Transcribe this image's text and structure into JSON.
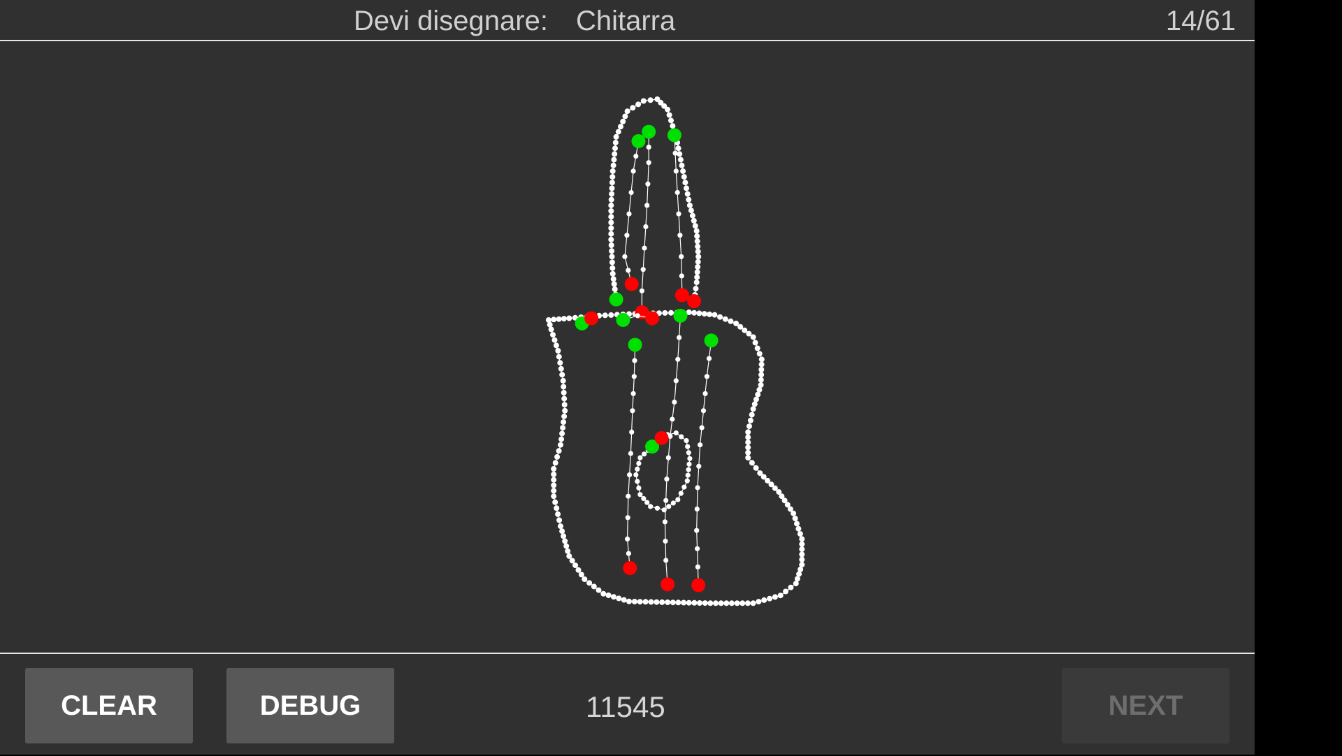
{
  "header": {
    "prompt_label": "Devi disegnare:",
    "prompt_word": "Chitarra",
    "progress": "14/61"
  },
  "footer": {
    "clear_label": "CLEAR",
    "debug_label": "DEBUG",
    "score": "11545",
    "next_label": "NEXT"
  },
  "colors": {
    "background": "#303030",
    "stroke": "#ffffff",
    "stroke_start": "#00e000",
    "stroke_end": "#ff0000",
    "button": "#585858",
    "button_disabled": "#3a3a3a"
  },
  "drawing": {
    "subject": "guitar",
    "stroke_count": 11
  }
}
